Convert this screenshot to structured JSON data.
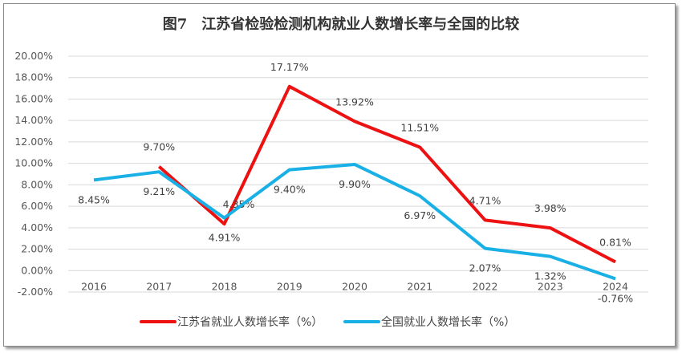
{
  "chart_data": {
    "type": "line",
    "title": "图7　江苏省检验检测机构就业人数增长率与全国的比较",
    "categories": [
      "2016",
      "2017",
      "2018",
      "2019",
      "2020",
      "2021",
      "2022",
      "2023",
      "2024"
    ],
    "series": [
      {
        "name": "江苏省就业人数增长率（%）",
        "color": "#ee1111",
        "values": [
          null,
          9.7,
          4.35,
          17.17,
          13.92,
          11.51,
          4.71,
          3.98,
          0.81
        ],
        "labels": [
          null,
          "9.70%",
          "4.35%",
          "17.17%",
          "13.92%",
          "11.51%",
          "4.71%",
          "3.98%",
          "0.81%"
        ]
      },
      {
        "name": "全国就业人数增长率（%）",
        "color": "#19b0e6",
        "values": [
          8.45,
          9.21,
          4.91,
          9.4,
          9.9,
          6.97,
          2.07,
          1.32,
          -0.76
        ],
        "labels": [
          "8.45%",
          "9.21%",
          "4.91%",
          "9.40%",
          "9.90%",
          "6.97%",
          "2.07%",
          "1.32%",
          "-0.76%"
        ]
      }
    ],
    "ylim": [
      -2,
      20
    ],
    "yticks": [
      "-2.00%",
      "0.00%",
      "2.00%",
      "4.00%",
      "6.00%",
      "8.00%",
      "10.00%",
      "12.00%",
      "14.00%",
      "16.00%",
      "18.00%",
      "20.00%"
    ],
    "grid": true,
    "legend": "bottom"
  }
}
